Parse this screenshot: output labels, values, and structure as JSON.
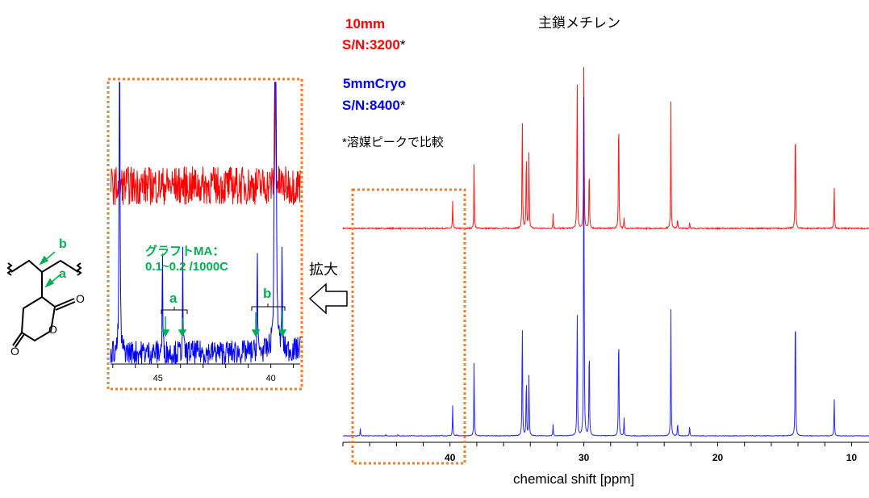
{
  "labels": {
    "sample1_name": "10mm",
    "sample1_sn": " S/N:3200",
    "sample2_name": "5mmCryo",
    "sample2_sn": " S/N:8400",
    "asterisk": "*",
    "footnote": "*溶媒ピークで比較",
    "main_chain": "主鎖メチレン",
    "zoom_label": "拡大",
    "graft_line1": "グラフトMA：",
    "graft_line2": "0.1~0.2 /1000C",
    "peak_a": "a",
    "peak_b": "b",
    "struct_a": "a",
    "struct_b": "b",
    "o1": "O",
    "o2": "O",
    "o3": "O"
  },
  "colors": {
    "red": "#ff0000",
    "blue": "#0000ff",
    "green": "#00b050",
    "orange": "#ed7d31"
  },
  "chart_data": {
    "type": "line",
    "xlabel": "chemical shift [ppm]",
    "xlim": [
      48,
      8.7
    ],
    "xticks": [
      40,
      30,
      20,
      10
    ],
    "inset": {
      "xlim": [
        47.1,
        38.7
      ],
      "xticks": [
        45,
        40
      ]
    },
    "series": [
      {
        "name": "10mm",
        "color": "#ff0000",
        "peaks": [
          [
            39.8,
            0.15
          ],
          [
            38.2,
            0.37
          ],
          [
            34.6,
            0.75
          ],
          [
            34.3,
            0.5
          ],
          [
            34.1,
            0.45
          ],
          [
            32.3,
            0.08
          ],
          [
            30.5,
            0.98
          ],
          [
            30.0,
            1.0
          ],
          [
            29.6,
            0.4
          ],
          [
            27.4,
            0.78
          ],
          [
            27.0,
            0.06
          ],
          [
            23.5,
            0.7
          ],
          [
            23.0,
            0.06
          ],
          [
            22.1,
            0.04
          ],
          [
            14.2,
            0.71
          ],
          [
            11.3,
            0.26
          ]
        ],
        "noise": 0.012
      },
      {
        "name": "5mmCryo",
        "color": "#0000ff",
        "peaks": [
          [
            46.7,
            0.02
          ],
          [
            39.8,
            0.08
          ],
          [
            38.2,
            0.2
          ],
          [
            34.6,
            0.36
          ],
          [
            34.3,
            0.18
          ],
          [
            34.1,
            0.17
          ],
          [
            32.3,
            0.03
          ],
          [
            30.5,
            0.39
          ],
          [
            30.0,
            1.0
          ],
          [
            29.6,
            0.29
          ],
          [
            27.4,
            0.34
          ],
          [
            27.0,
            0.05
          ],
          [
            23.5,
            0.33
          ],
          [
            23.0,
            0.04
          ],
          [
            22.1,
            0.03
          ],
          [
            14.2,
            0.42
          ],
          [
            11.3,
            0.11
          ],
          [
            44.8,
            0.003
          ],
          [
            43.9,
            0.0025
          ],
          [
            40.6,
            0.003
          ],
          [
            39.5,
            0.003
          ]
        ],
        "noise": 0.0015
      }
    ]
  }
}
